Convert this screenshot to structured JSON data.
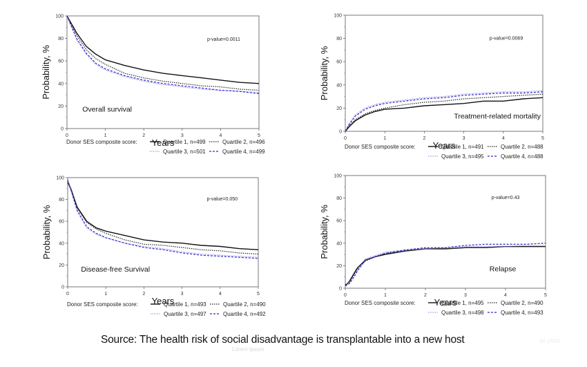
{
  "caption": "Source: The health risk of social disadvantage is transplantable into a new host",
  "watermark_text": "Lorem Ipsum",
  "faint_text": "all plots",
  "colors": {
    "q1": "#111111",
    "q2": "#222222",
    "q3": "#8a7be0",
    "q4": "#2a2ad0",
    "axis": "#555555"
  },
  "chart_data": [
    {
      "id": "os",
      "type": "line",
      "title": "Overall survival",
      "pvalue": "p-value=0.0011",
      "xlabel": "Years",
      "ylabel": "Probability, %",
      "xlim": [
        0,
        5
      ],
      "ylim": [
        0,
        100
      ],
      "xticks": [
        "0",
        "1",
        "2",
        "3",
        "4",
        "5"
      ],
      "yticks": [
        "0",
        "20",
        "40",
        "60",
        "80",
        "100"
      ],
      "legend_title": "Donor SES composite score:",
      "x": [
        0,
        0.25,
        0.5,
        0.75,
        1,
        1.5,
        2,
        2.5,
        3,
        3.5,
        4,
        4.5,
        5
      ],
      "series": [
        {
          "name": "Quartile 1, n=499",
          "values": [
            100,
            85,
            73,
            66,
            61,
            56,
            52,
            49,
            47,
            45,
            43,
            41,
            40
          ]
        },
        {
          "name": "Quartile 2, n=496",
          "values": [
            100,
            83,
            70,
            62,
            57,
            49,
            45,
            42,
            40,
            38,
            37,
            35,
            34
          ]
        },
        {
          "name": "Quartile 3, n=501",
          "values": [
            100,
            79,
            66,
            57,
            52,
            46,
            42,
            39,
            37,
            35,
            34,
            33,
            32
          ]
        },
        {
          "name": "Quartile 4, n=499",
          "values": [
            100,
            80,
            67,
            58,
            53,
            47,
            43,
            40,
            38,
            36,
            34,
            33,
            31
          ]
        }
      ]
    },
    {
      "id": "trm",
      "type": "line",
      "title": "Treatment-related mortality",
      "pvalue": "p-value=0.0069",
      "xlabel": "Years",
      "ylabel": "Probability, %",
      "xlim": [
        0,
        5
      ],
      "ylim": [
        0,
        100
      ],
      "xticks": [
        "0",
        "1",
        "2",
        "3",
        "4",
        "5"
      ],
      "yticks": [
        "0",
        "20",
        "40",
        "60",
        "80",
        "100"
      ],
      "legend_title": "Donor SES composite score:",
      "x": [
        0,
        0.1,
        0.25,
        0.5,
        0.75,
        1,
        1.5,
        2,
        2.5,
        3,
        3.5,
        4,
        4.5,
        5
      ],
      "series": [
        {
          "name": "Quartile 1, n=491",
          "values": [
            0,
            4,
            9,
            14,
            17,
            19,
            20,
            22,
            23,
            24,
            26,
            26,
            28,
            29
          ]
        },
        {
          "name": "Quartile 2, n=488",
          "values": [
            0,
            5,
            10,
            15,
            18,
            20,
            23,
            25,
            26,
            28,
            29,
            30,
            31,
            32
          ]
        },
        {
          "name": "Quartile 3, n=495",
          "values": [
            0,
            7,
            14,
            20,
            23,
            25,
            27,
            29,
            30,
            32,
            33,
            34,
            34,
            35
          ]
        },
        {
          "name": "Quartile 4, n=488",
          "values": [
            0,
            6,
            13,
            19,
            22,
            24,
            26,
            28,
            29,
            31,
            32,
            33,
            33,
            34
          ]
        }
      ]
    },
    {
      "id": "dfs",
      "type": "line",
      "title": "Disease-free Survival",
      "pvalue": "p-value=0.050",
      "xlabel": "Years",
      "ylabel": "Probability, %",
      "xlim": [
        0,
        5
      ],
      "ylim": [
        0,
        100
      ],
      "xticks": [
        "0",
        "1",
        "2",
        "3",
        "4",
        "5"
      ],
      "yticks": [
        "0",
        "20",
        "40",
        "60",
        "80",
        "100"
      ],
      "legend_title": "Donor SES composite score:",
      "x": [
        0,
        0.1,
        0.25,
        0.5,
        0.75,
        1,
        1.5,
        2,
        2.5,
        3,
        3.5,
        4,
        4.5,
        5
      ],
      "series": [
        {
          "name": "Quartile 1, n=493",
          "values": [
            96,
            88,
            73,
            60,
            54,
            51,
            47,
            43,
            41,
            40,
            38,
            37,
            35,
            34
          ]
        },
        {
          "name": "Quartile 2, n=490",
          "values": [
            97,
            89,
            72,
            59,
            53,
            49,
            43,
            39,
            38,
            36,
            34,
            33,
            31,
            30
          ]
        },
        {
          "name": "Quartile 3, n=497",
          "values": [
            98,
            87,
            69,
            54,
            48,
            45,
            40,
            37,
            35,
            32,
            30,
            29,
            28,
            27
          ]
        },
        {
          "name": "Quartile 4, n=492",
          "values": [
            98,
            87,
            70,
            55,
            49,
            45,
            40,
            36,
            34,
            31,
            29,
            28,
            27,
            26
          ]
        }
      ]
    },
    {
      "id": "relapse",
      "type": "line",
      "title": "Relapse",
      "pvalue": "p-value=0.43",
      "xlabel": "Years",
      "ylabel": "Probability, %",
      "xlim": [
        0,
        5
      ],
      "ylim": [
        0,
        100
      ],
      "xticks": [
        "0",
        "1",
        "2",
        "3",
        "4",
        "5"
      ],
      "yticks": [
        "0",
        "20",
        "40",
        "60",
        "80",
        "100"
      ],
      "legend_title": "Donor SES composite score:",
      "x": [
        0,
        0.1,
        0.2,
        0.3,
        0.5,
        0.75,
        1,
        1.5,
        2,
        2.5,
        3,
        3.5,
        4,
        4.5,
        5
      ],
      "series": [
        {
          "name": "Quartile 1, n=495",
          "values": [
            2,
            6,
            12,
            18,
            25,
            28,
            30,
            33,
            35,
            35,
            36,
            36,
            37,
            37,
            37
          ]
        },
        {
          "name": "Quartile 2, n=490",
          "values": [
            3,
            5,
            11,
            17,
            24,
            28,
            31,
            33,
            35,
            35,
            36,
            36,
            37,
            37,
            37
          ]
        },
        {
          "name": "Quartile 3, n=498",
          "values": [
            4,
            5,
            10,
            16,
            26,
            29,
            32,
            34,
            35,
            36,
            37,
            37,
            37,
            38,
            38
          ]
        },
        {
          "name": "Quartile 4, n=493",
          "values": [
            2,
            4,
            9,
            15,
            25,
            28,
            31,
            34,
            36,
            36,
            38,
            39,
            39,
            39,
            40
          ]
        }
      ]
    }
  ]
}
